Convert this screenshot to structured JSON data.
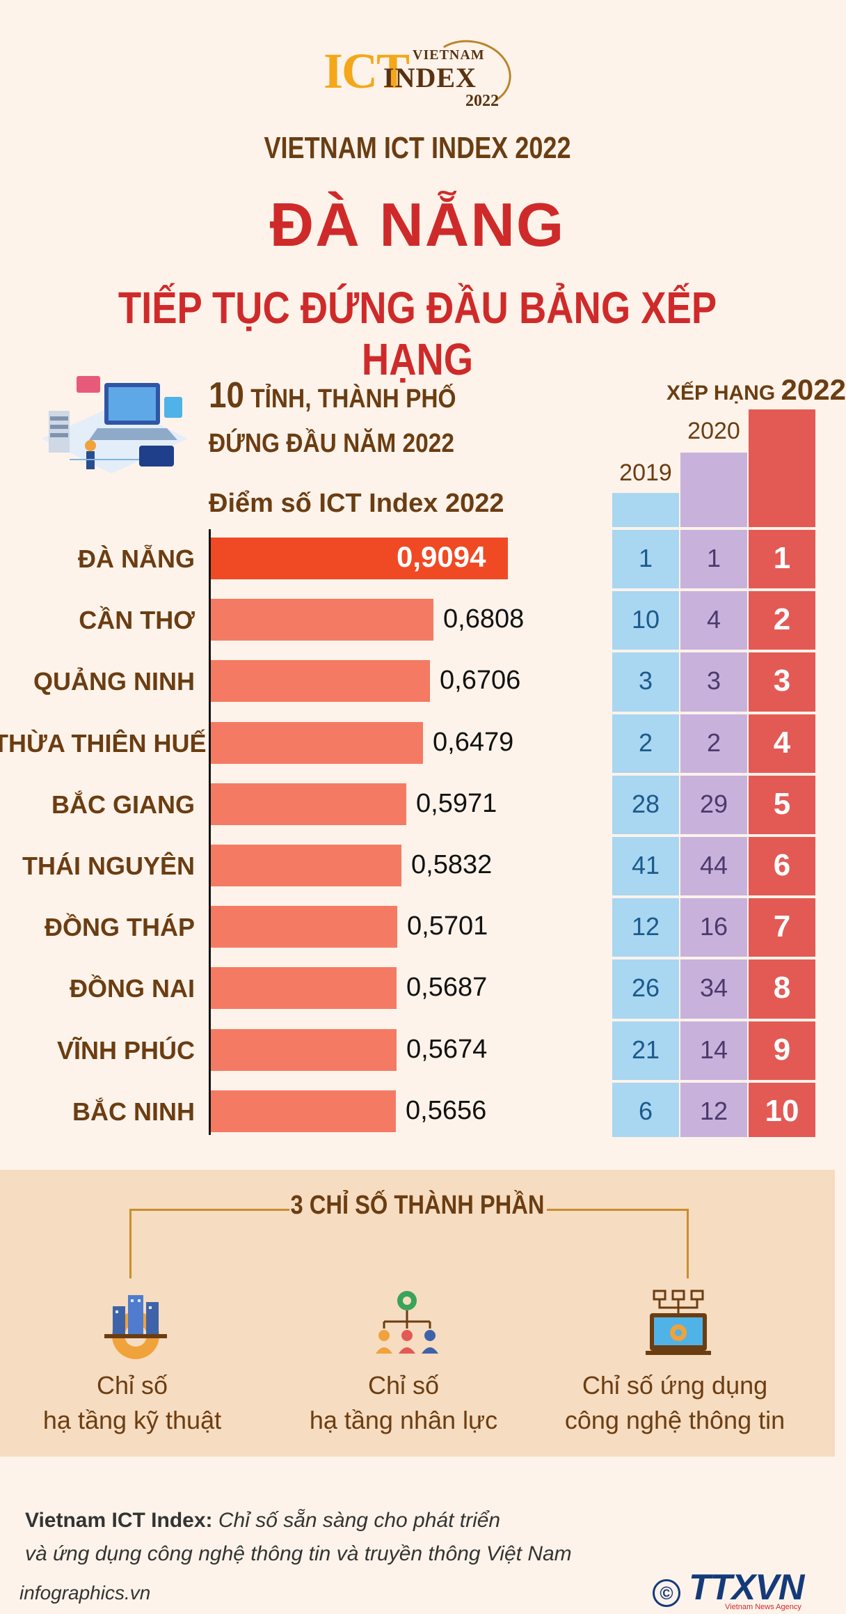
{
  "header": {
    "logo_ict": "ICT",
    "logo_vietnam": "VIETNAM",
    "logo_index": "INDEX",
    "logo_year": "2022",
    "subtitle": "VIETNAM ICT INDEX 2022",
    "title": "ĐÀ NẴNG",
    "title2": "TIẾP TỤC ĐỨNG ĐẦU BẢNG XẾP HẠNG"
  },
  "intro": {
    "count": "10",
    "line1_rest": " TỈNH, THÀNH PHỐ",
    "line2": "ĐỨNG ĐẦU NĂM 2022",
    "score_header": "Điểm số ICT Index 2022"
  },
  "ranking_header": {
    "label": "XẾP HẠNG ",
    "year_2022": "2022",
    "year_2020": "2020",
    "year_2019": "2019"
  },
  "chart_data": {
    "type": "bar",
    "orientation": "horizontal",
    "title": "Điểm số ICT Index 2022",
    "categories": [
      "ĐÀ NẴNG",
      "CẦN THƠ",
      "QUẢNG NINH",
      "THỪA THIÊN HUẾ",
      "BẮC GIANG",
      "THÁI NGUYÊN",
      "ĐỒNG THÁP",
      "ĐỒNG NAI",
      "VĨNH PHÚC",
      "BẮC NINH"
    ],
    "values": [
      0.9094,
      0.6808,
      0.6706,
      0.6479,
      0.5971,
      0.5832,
      0.5701,
      0.5687,
      0.5674,
      0.5656
    ],
    "value_labels": [
      "0,9094",
      "0,6808",
      "0,6706",
      "0,6479",
      "0,5971",
      "0,5832",
      "0,5701",
      "0,5687",
      "0,5674",
      "0,5656"
    ],
    "xlim": [
      0,
      1
    ],
    "bar_colors": {
      "highlight": "#ef4a24",
      "default": "#f57a63"
    }
  },
  "ranking_table": {
    "columns": [
      "2019",
      "2020",
      "2022"
    ],
    "rows": [
      {
        "r2019": "1",
        "r2020": "1",
        "r2022": "1"
      },
      {
        "r2019": "10",
        "r2020": "4",
        "r2022": "2"
      },
      {
        "r2019": "3",
        "r2020": "3",
        "r2022": "3"
      },
      {
        "r2019": "2",
        "r2020": "2",
        "r2022": "4"
      },
      {
        "r2019": "28",
        "r2020": "29",
        "r2022": "5"
      },
      {
        "r2019": "41",
        "r2020": "44",
        "r2022": "6"
      },
      {
        "r2019": "12",
        "r2020": "16",
        "r2022": "7"
      },
      {
        "r2019": "26",
        "r2020": "34",
        "r2022": "8"
      },
      {
        "r2019": "21",
        "r2020": "14",
        "r2022": "9"
      },
      {
        "r2019": "6",
        "r2020": "12",
        "r2022": "10"
      }
    ],
    "colors": {
      "2019": "#a9d6f1",
      "2020": "#c8b1db",
      "2022": "#e35a55"
    }
  },
  "components": {
    "title": "3 CHỈ SỐ THÀNH PHẦN",
    "items": [
      {
        "line1": "Chỉ số",
        "line2": "hạ tầng kỹ thuật",
        "icon": "infrastructure-icon"
      },
      {
        "line1": "Chỉ số",
        "line2": "hạ tầng nhân lực",
        "icon": "human-resources-icon"
      },
      {
        "line1": "Chỉ số ứng dụng",
        "line2": "công nghệ thông tin",
        "icon": "it-application-icon"
      }
    ]
  },
  "footer": {
    "definition_lead": "Vietnam ICT Index:",
    "definition_text": " Chỉ số sẵn sàng cho phát triển",
    "definition_line2": "và ứng dụng công nghệ thông tin và truyền thông Việt Nam",
    "source": "infographics.vn",
    "copyright": "©",
    "agency_logo": "TTXVN",
    "agency_sub": "Vietnam News Agency"
  }
}
